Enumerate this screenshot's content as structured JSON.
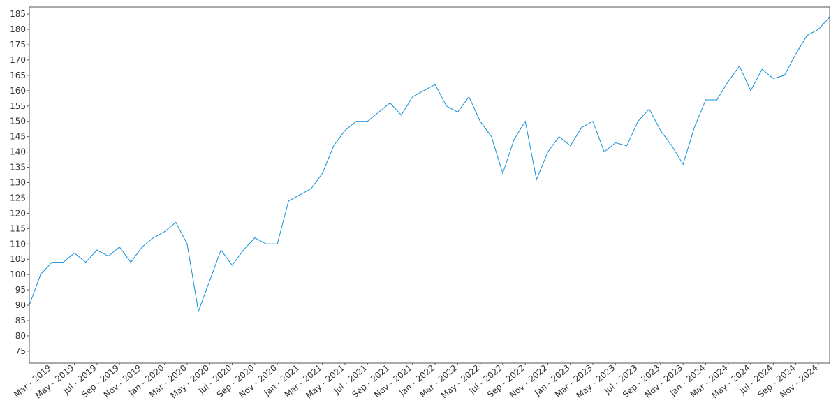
{
  "chart_data": {
    "type": "line",
    "x": [
      "2019-01",
      "2019-02",
      "2019-03",
      "2019-04",
      "2019-05",
      "2019-06",
      "2019-07",
      "2019-08",
      "2019-09",
      "2019-10",
      "2019-11",
      "2019-12",
      "2020-01",
      "2020-02",
      "2020-03",
      "2020-04",
      "2020-05",
      "2020-06",
      "2020-07",
      "2020-08",
      "2020-09",
      "2020-10",
      "2020-11",
      "2020-12",
      "2021-01",
      "2021-02",
      "2021-03",
      "2021-04",
      "2021-05",
      "2021-06",
      "2021-07",
      "2021-08",
      "2021-09",
      "2021-10",
      "2021-11",
      "2021-12",
      "2022-01",
      "2022-02",
      "2022-03",
      "2022-04",
      "2022-05",
      "2022-06",
      "2022-07",
      "2022-08",
      "2022-09",
      "2022-10",
      "2022-11",
      "2022-12",
      "2023-01",
      "2023-02",
      "2023-03",
      "2023-04",
      "2023-05",
      "2023-06",
      "2023-07",
      "2023-08",
      "2023-09",
      "2023-10",
      "2023-11",
      "2023-12",
      "2024-01",
      "2024-02",
      "2024-03",
      "2024-04",
      "2024-05",
      "2024-06",
      "2024-07",
      "2024-08",
      "2024-09",
      "2024-10",
      "2024-11",
      "2024-12"
    ],
    "series": [
      {
        "color": "#0f8fd8",
        "values": [
          90,
          100,
          104,
          104,
          107,
          104,
          108,
          106,
          109,
          104,
          109,
          112,
          114,
          117,
          110,
          88,
          98,
          108,
          103,
          108,
          112,
          110,
          110,
          124,
          126,
          128,
          133,
          142,
          147,
          150,
          150,
          153,
          156,
          152,
          158,
          160,
          162,
          155,
          153,
          158,
          150,
          145,
          133,
          144,
          150,
          131,
          140,
          145,
          142,
          148,
          150,
          140,
          143,
          142,
          150,
          154,
          147,
          142,
          136,
          148,
          157,
          157,
          163,
          168,
          160,
          167,
          164,
          165,
          172,
          178,
          180,
          184
        ]
      }
    ],
    "xlim": [
      "2019-01",
      "2024-12"
    ],
    "xticks": [
      {
        "value": "2019-03",
        "label": "Mar - 2019"
      },
      {
        "value": "2019-05",
        "label": "May - 2019"
      },
      {
        "value": "2019-07",
        "label": "Jul - 2019"
      },
      {
        "value": "2019-09",
        "label": "Sep - 2019"
      },
      {
        "value": "2019-11",
        "label": "Nov - 2019"
      },
      {
        "value": "2020-01",
        "label": "Jan - 2020"
      },
      {
        "value": "2020-03",
        "label": "Mar - 2020"
      },
      {
        "value": "2020-05",
        "label": "May - 2020"
      },
      {
        "value": "2020-07",
        "label": "Jul - 2020"
      },
      {
        "value": "2020-09",
        "label": "Sep - 2020"
      },
      {
        "value": "2020-11",
        "label": "Nov - 2020"
      },
      {
        "value": "2021-01",
        "label": "Jan - 2021"
      },
      {
        "value": "2021-03",
        "label": "Mar - 2021"
      },
      {
        "value": "2021-05",
        "label": "May - 2021"
      },
      {
        "value": "2021-07",
        "label": "Jul - 2021"
      },
      {
        "value": "2021-09",
        "label": "Sep - 2021"
      },
      {
        "value": "2021-11",
        "label": "Nov - 2021"
      },
      {
        "value": "2022-01",
        "label": "Jan - 2022"
      },
      {
        "value": "2022-03",
        "label": "Mar - 2022"
      },
      {
        "value": "2022-05",
        "label": "May - 2022"
      },
      {
        "value": "2022-07",
        "label": "Jul - 2022"
      },
      {
        "value": "2022-09",
        "label": "Sep - 2022"
      },
      {
        "value": "2022-11",
        "label": "Nov - 2022"
      },
      {
        "value": "2023-01",
        "label": "Jan - 2023"
      },
      {
        "value": "2023-03",
        "label": "Mar - 2023"
      },
      {
        "value": "2023-05",
        "label": "May - 2023"
      },
      {
        "value": "2023-07",
        "label": "Jul - 2023"
      },
      {
        "value": "2023-09",
        "label": "Sep - 2023"
      },
      {
        "value": "2023-11",
        "label": "Nov - 2023"
      },
      {
        "value": "2024-01",
        "label": "Jan - 2024"
      },
      {
        "value": "2024-03",
        "label": "Mar - 2024"
      },
      {
        "value": "2024-05",
        "label": "May - 2024"
      },
      {
        "value": "2024-07",
        "label": "Jul - 2024"
      },
      {
        "value": "2024-09",
        "label": "Sep - 2024"
      },
      {
        "value": "2024-11",
        "label": "Nov - 2024"
      }
    ],
    "ylim": [
      71.1,
      187.3
    ],
    "yticks": [
      75,
      80,
      85,
      90,
      95,
      100,
      105,
      110,
      115,
      120,
      125,
      130,
      135,
      140,
      145,
      150,
      155,
      160,
      165,
      170,
      175,
      180,
      185
    ]
  }
}
